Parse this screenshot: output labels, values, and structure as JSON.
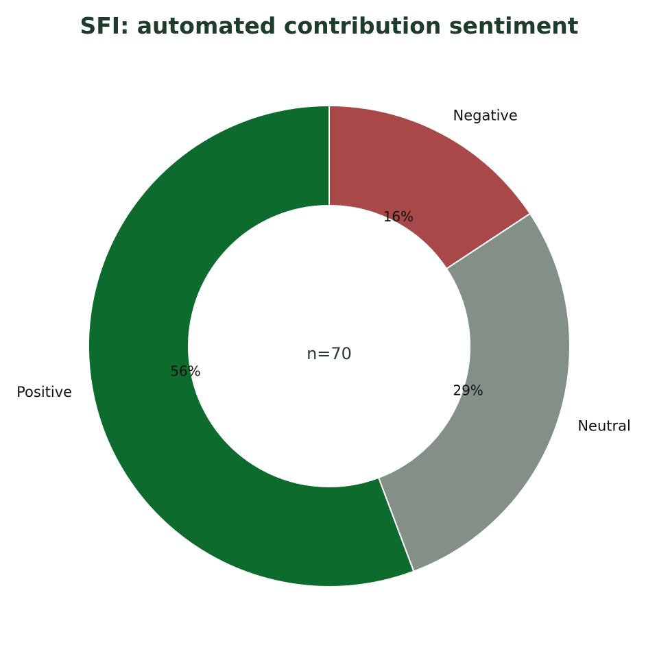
{
  "chart_data": {
    "type": "pie",
    "title": "SFI: automated contribution sentiment",
    "center_text": "n=70",
    "slices": [
      {
        "label": "Negative",
        "percent_label": "16%",
        "value": 11,
        "color": "#a84848"
      },
      {
        "label": "Neutral",
        "percent_label": "29%",
        "value": 20,
        "color": "#838f87"
      },
      {
        "label": "Positive",
        "percent_label": "56%",
        "value": 39,
        "color": "#0d6b2e"
      }
    ],
    "start": "top",
    "direction": "clockwise",
    "donut": true
  }
}
